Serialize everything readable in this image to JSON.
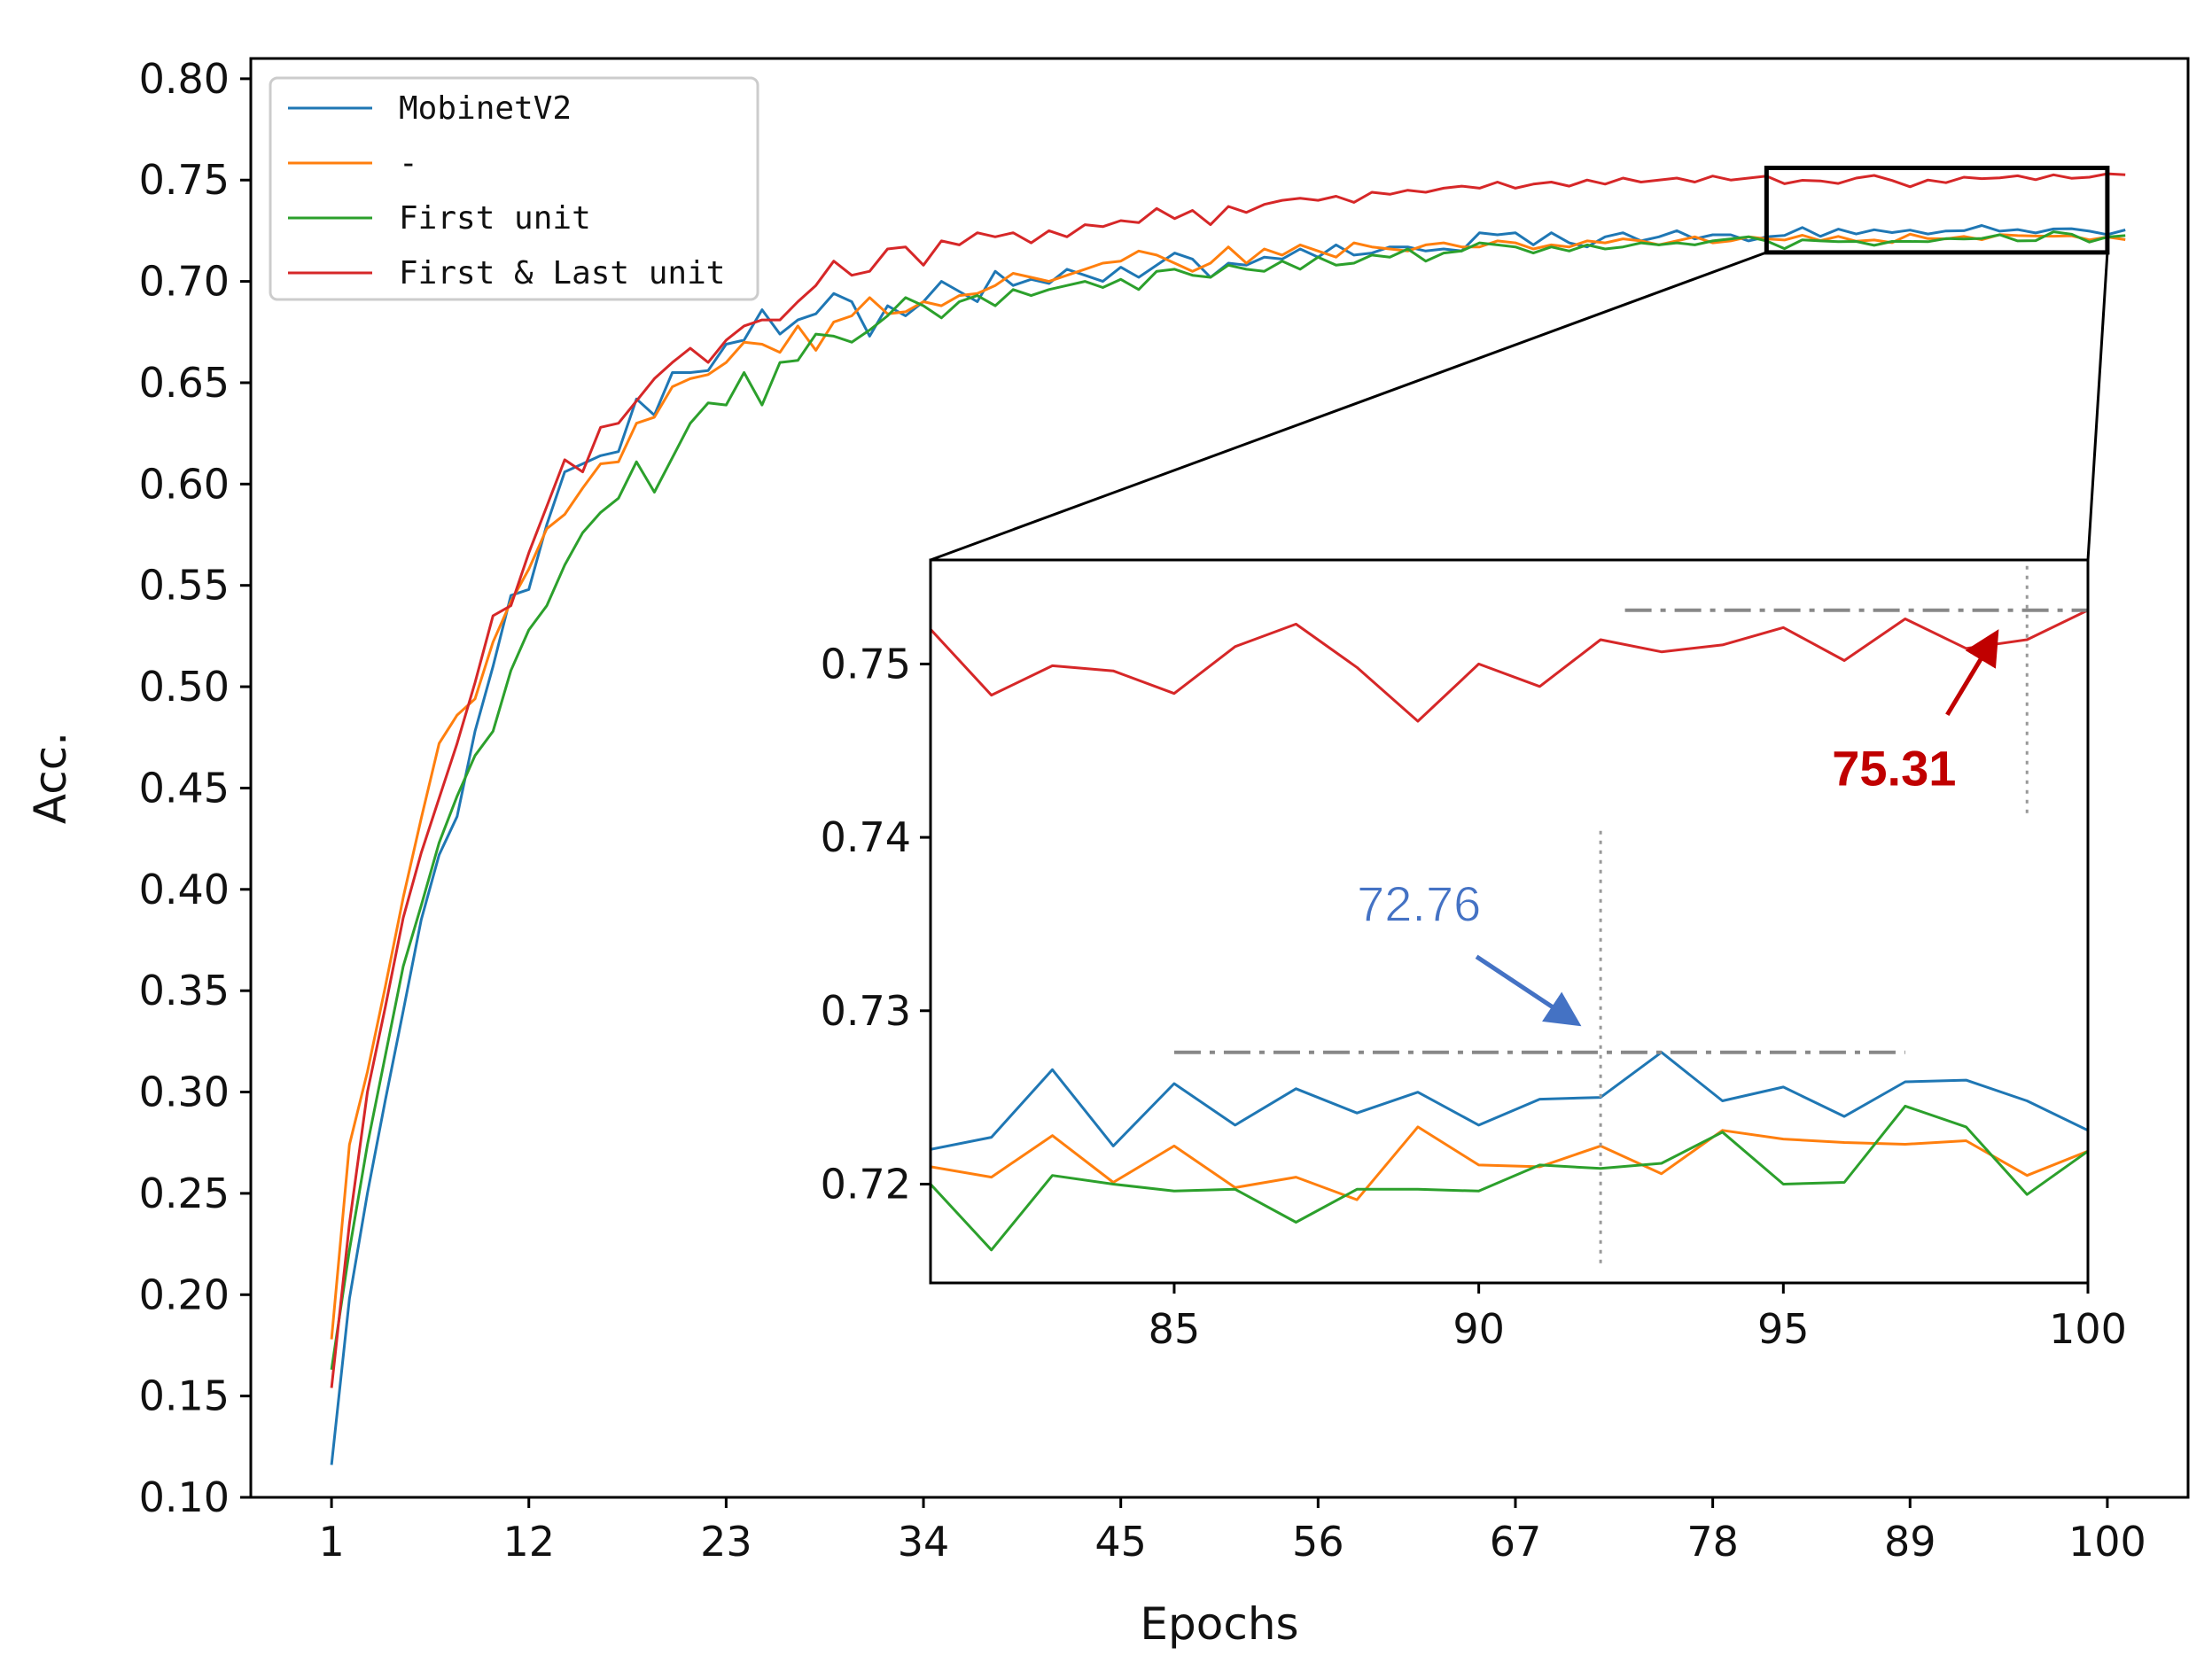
{
  "chart_data": {
    "type": "line",
    "xlabel": "Epochs",
    "ylabel": "Acc.",
    "xlim": [
      -3.5,
      104.5
    ],
    "ylim": [
      0.1,
      0.81
    ],
    "x_ticks": [
      1,
      12,
      23,
      34,
      45,
      56,
      67,
      78,
      89,
      100
    ],
    "y_ticks": [
      "0.10",
      "0.15",
      "0.20",
      "0.25",
      "0.30",
      "0.35",
      "0.40",
      "0.45",
      "0.50",
      "0.55",
      "0.60",
      "0.65",
      "0.70",
      "0.75",
      "0.80"
    ],
    "legend_position": "top-left",
    "series": [
      {
        "name": "MobinetV2",
        "color": "#1f77b4",
        "values": [
          0.116,
          0.198,
          0.25,
          0.296,
          0.34,
          0.385,
          0.417,
          0.436,
          0.478,
          0.51,
          0.545,
          0.548,
          0.58,
          0.606,
          0.61,
          0.614,
          0.616,
          0.642,
          0.634,
          0.655,
          0.655,
          0.656,
          0.669,
          0.671,
          0.686,
          0.674,
          0.681,
          0.684,
          0.694,
          0.69,
          0.673,
          0.688,
          0.683,
          0.69,
          0.7,
          0.695,
          0.69,
          0.705,
          0.698,
          0.701,
          0.699,
          0.706,
          0.703,
          0.7,
          0.707,
          0.702,
          0.708,
          0.714,
          0.711,
          0.702,
          0.709,
          0.708,
          0.712,
          0.711,
          0.716,
          0.712,
          0.718,
          0.713,
          0.714,
          0.717,
          0.717,
          0.715,
          0.716,
          0.715,
          0.724,
          0.723,
          0.724,
          0.718,
          0.724,
          0.719,
          0.717,
          0.722,
          0.724,
          0.72,
          0.722,
          0.725,
          0.721,
          0.723,
          0.723,
          0.72,
          0.722,
          0.7227,
          0.7266,
          0.7222,
          0.7258,
          0.7234,
          0.7255,
          0.7241,
          0.7253,
          0.7234,
          0.7249,
          0.725,
          0.7276,
          0.7248,
          0.7256,
          0.7239,
          0.7259,
          0.726,
          0.7248,
          0.7231,
          0.7254
        ]
      },
      {
        "name": "-",
        "color": "#ff7f0e",
        "values": [
          0.178,
          0.274,
          0.31,
          0.352,
          0.396,
          0.435,
          0.472,
          0.486,
          0.494,
          0.522,
          0.542,
          0.558,
          0.578,
          0.585,
          0.598,
          0.61,
          0.611,
          0.63,
          0.633,
          0.648,
          0.652,
          0.654,
          0.66,
          0.67,
          0.669,
          0.665,
          0.678,
          0.666,
          0.68,
          0.683,
          0.692,
          0.684,
          0.685,
          0.69,
          0.688,
          0.693,
          0.694,
          0.698,
          0.704,
          0.702,
          0.7,
          0.703,
          0.706,
          0.709,
          0.71,
          0.715,
          0.713,
          0.709,
          0.705,
          0.709,
          0.717,
          0.709,
          0.716,
          0.713,
          0.718,
          0.715,
          0.712,
          0.719,
          0.717,
          0.716,
          0.715,
          0.718,
          0.719,
          0.717,
          0.717,
          0.72,
          0.719,
          0.716,
          0.718,
          0.717,
          0.72,
          0.719,
          0.721,
          0.72,
          0.718,
          0.72,
          0.722,
          0.719,
          0.72,
          0.722,
          0.721,
          0.7204,
          0.7228,
          0.7201,
          0.7222,
          0.7198,
          0.7204,
          0.7191,
          0.7233,
          0.7211,
          0.721,
          0.7222,
          0.7206,
          0.7231,
          0.7226,
          0.7224,
          0.7223,
          0.7225,
          0.7205,
          0.7219,
          0.7206
        ]
      },
      {
        "name": "First unit",
        "color": "#2ca02c",
        "values": [
          0.163,
          0.222,
          0.274,
          0.318,
          0.362,
          0.392,
          0.423,
          0.446,
          0.466,
          0.478,
          0.508,
          0.528,
          0.54,
          0.56,
          0.576,
          0.586,
          0.593,
          0.611,
          0.596,
          0.613,
          0.63,
          0.64,
          0.639,
          0.655,
          0.639,
          0.66,
          0.661,
          0.674,
          0.673,
          0.67,
          0.676,
          0.683,
          0.692,
          0.688,
          0.682,
          0.69,
          0.693,
          0.688,
          0.696,
          0.693,
          0.696,
          0.698,
          0.7,
          0.697,
          0.701,
          0.696,
          0.705,
          0.706,
          0.703,
          0.702,
          0.708,
          0.706,
          0.705,
          0.71,
          0.706,
          0.712,
          0.708,
          0.709,
          0.713,
          0.712,
          0.716,
          0.71,
          0.714,
          0.715,
          0.719,
          0.718,
          0.717,
          0.714,
          0.717,
          0.715,
          0.718,
          0.716,
          0.717,
          0.719,
          0.718,
          0.719,
          0.718,
          0.72,
          0.721,
          0.722,
          0.72,
          0.7162,
          0.7205,
          0.72,
          0.7196,
          0.7197,
          0.7178,
          0.7197,
          0.7197,
          0.7196,
          0.7211,
          0.7209,
          0.7212,
          0.723,
          0.72,
          0.7201,
          0.7245,
          0.7233,
          0.7194,
          0.7219,
          0.7226
        ]
      },
      {
        "name": "First & Last unit",
        "color": "#d62728",
        "values": [
          0.154,
          0.235,
          0.3,
          0.342,
          0.386,
          0.418,
          0.445,
          0.472,
          0.502,
          0.535,
          0.54,
          0.566,
          0.589,
          0.612,
          0.606,
          0.628,
          0.63,
          0.641,
          0.652,
          0.66,
          0.667,
          0.66,
          0.671,
          0.678,
          0.681,
          0.681,
          0.69,
          0.698,
          0.71,
          0.703,
          0.705,
          0.716,
          0.717,
          0.708,
          0.72,
          0.718,
          0.724,
          0.722,
          0.724,
          0.719,
          0.725,
          0.722,
          0.728,
          0.727,
          0.73,
          0.729,
          0.736,
          0.731,
          0.735,
          0.728,
          0.737,
          0.734,
          0.738,
          0.74,
          0.741,
          0.74,
          0.742,
          0.739,
          0.744,
          0.743,
          0.745,
          0.744,
          0.746,
          0.747,
          0.746,
          0.749,
          0.746,
          0.748,
          0.749,
          0.747,
          0.75,
          0.748,
          0.751,
          0.749,
          0.75,
          0.751,
          0.749,
          0.752,
          0.75,
          0.751,
          0.752,
          0.7482,
          0.7499,
          0.7496,
          0.7483,
          0.751,
          0.7523,
          0.7498,
          0.7467,
          0.75,
          0.7487,
          0.7514,
          0.7507,
          0.7511,
          0.7521,
          0.7502,
          0.7526,
          0.7509,
          0.7514,
          0.7531,
          0.7526
        ]
      }
    ],
    "inset": {
      "xlim": [
        81,
        100
      ],
      "ylim": [
        0.7143,
        0.756
      ],
      "x_ticks": [
        "85",
        "90",
        "95",
        "100"
      ],
      "y_ticks": [
        "0.72",
        "0.73",
        "0.74",
        "0.75"
      ],
      "zoom_box": {
        "x": [
          81,
          100
        ],
        "y": [
          0.7143,
          0.756
        ]
      },
      "annotations": [
        {
          "label": "72.76",
          "epoch": 92,
          "value": 0.7276,
          "color": "#4472c4",
          "hline_x": [
            85,
            97
          ]
        },
        {
          "label": "75.31",
          "epoch": 99,
          "value": 0.7531,
          "color": "#c00000",
          "hline_x": [
            92.4,
            100
          ]
        }
      ]
    }
  }
}
